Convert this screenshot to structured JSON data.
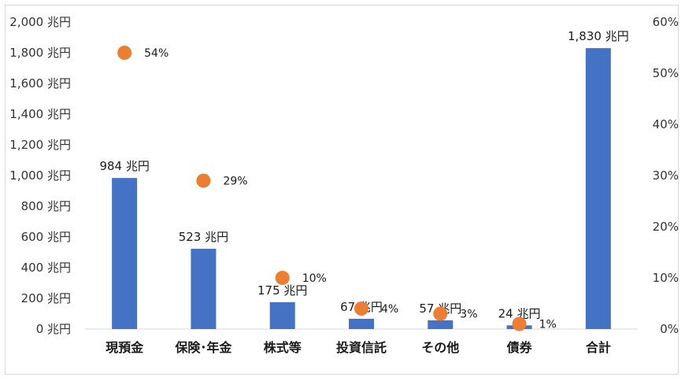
{
  "chart_data": {
    "type": "bar",
    "categories": [
      "現預金",
      "保険･年金",
      "株式等",
      "投資信託",
      "その他",
      "債券",
      "合計"
    ],
    "series": [
      {
        "type": "bar",
        "axis": "left",
        "values": [
          984,
          523,
          175,
          67,
          57,
          24,
          1830
        ],
        "labels": [
          "984 兆円",
          "523 兆円",
          "175 兆円",
          "67 兆円",
          "57 兆円",
          "24 兆円",
          "1,830 兆円"
        ],
        "color": "#4472c4"
      },
      {
        "type": "scatter",
        "axis": "right",
        "values": [
          54,
          29,
          10,
          4,
          3,
          1
        ],
        "labels": [
          "54%",
          "29%",
          "10%",
          "4%",
          "3%",
          "1%"
        ],
        "color": "#ed7d31"
      }
    ],
    "left_axis": {
      "ylim": [
        0,
        2000
      ],
      "tick_values": [
        0,
        200,
        400,
        600,
        800,
        1000,
        1200,
        1400,
        1600,
        1800,
        2000
      ],
      "tick_labels": [
        "0 兆円",
        "200 兆円",
        "400 兆円",
        "600 兆円",
        "800 兆円",
        "1,000 兆円",
        "1,200 兆円",
        "1,400 兆円",
        "1,600 兆円",
        "1,800 兆円",
        "2,000 兆円"
      ]
    },
    "right_axis": {
      "ylim": [
        0,
        60
      ],
      "tick_values": [
        0,
        10,
        20,
        30,
        40,
        50,
        60
      ],
      "tick_labels": [
        "0%",
        "10%",
        "20%",
        "30%",
        "40%",
        "50%",
        "60%"
      ]
    },
    "grid": false,
    "legend": "none"
  }
}
